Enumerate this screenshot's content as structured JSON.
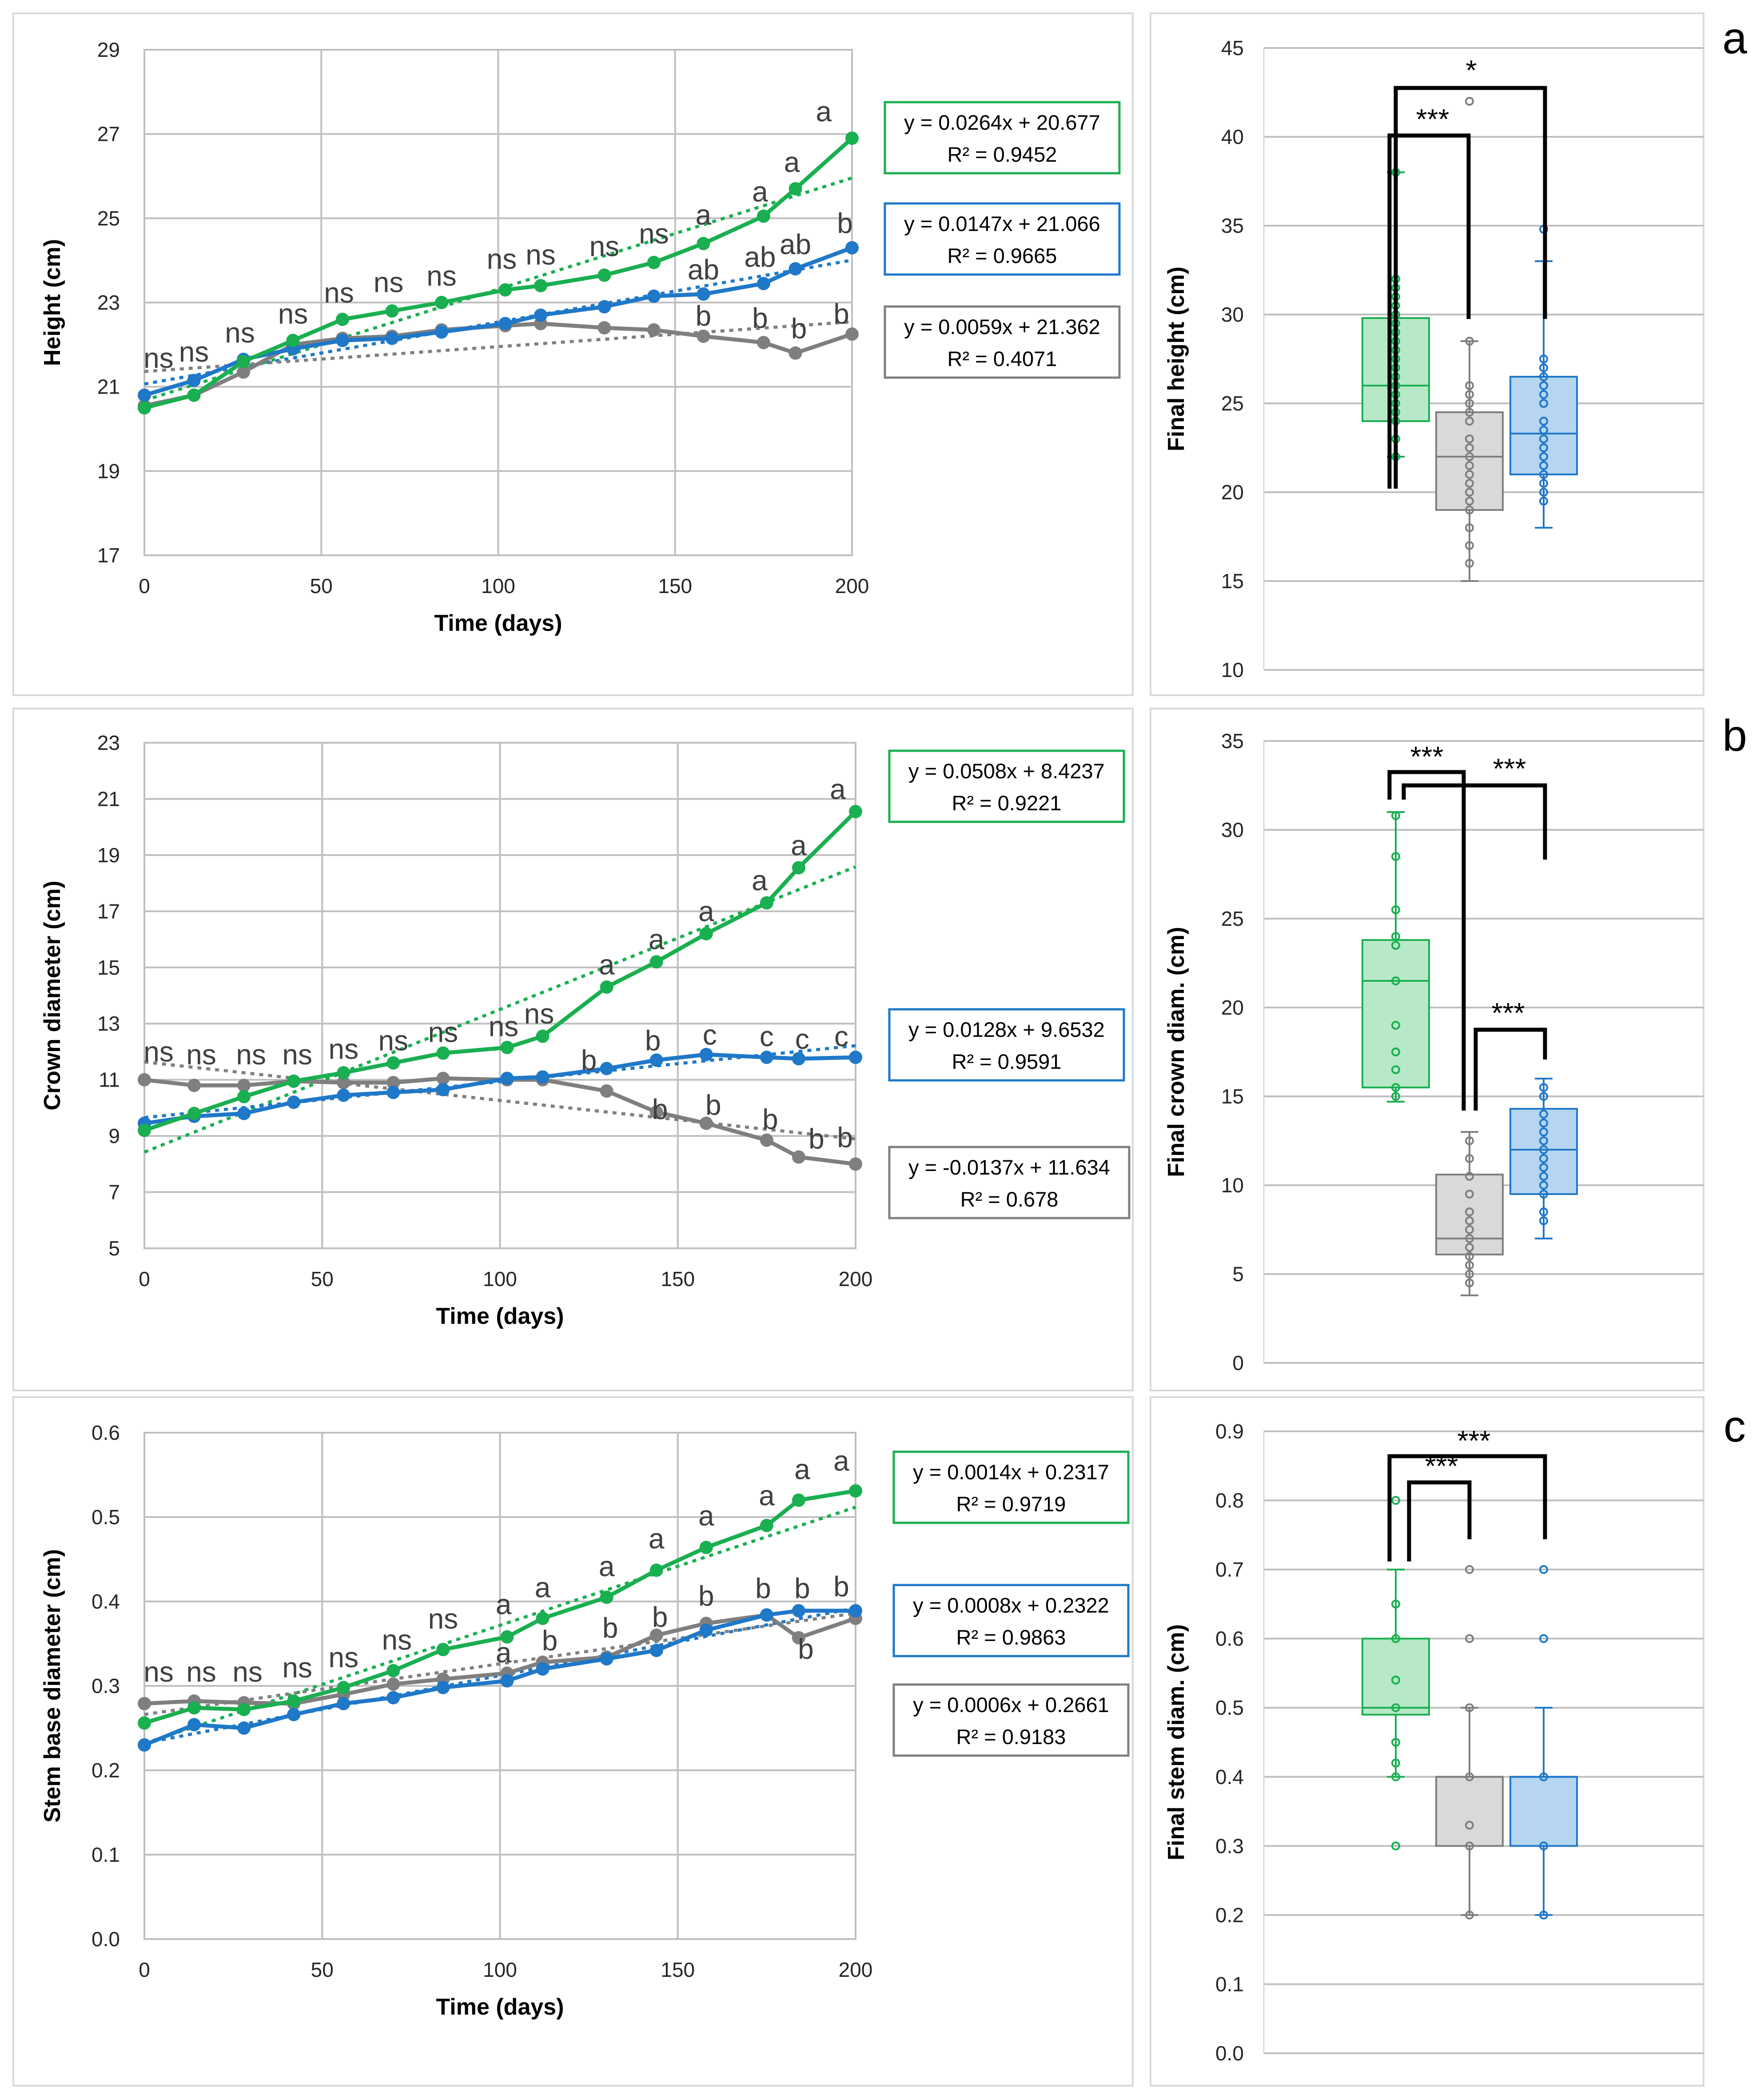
{
  "colors": {
    "green": "#1aaf50",
    "blue": "#1f78c8",
    "gray": "#7f7f7f",
    "green_fill": "#b7e9c8",
    "blue_fill": "#b5d5f0",
    "gray_fill": "#d9d9d9"
  },
  "chart_data": [
    {
      "type": "line",
      "panel": "a",
      "title": "",
      "xlabel": "Time (days)",
      "ylabel": "Height (cm)",
      "xlim": [
        0,
        200
      ],
      "ylim": [
        17,
        29
      ],
      "x_ticks": [
        "0",
        "50",
        "100",
        "150",
        "200"
      ],
      "y_ticks": [
        "17",
        "19",
        "21",
        "23",
        "25",
        "27",
        "29"
      ],
      "x": [
        0,
        14,
        28,
        42,
        56,
        70,
        84,
        102,
        112,
        130,
        144,
        158,
        175,
        184,
        200
      ],
      "series": [
        {
          "name": "green",
          "values": [
            20.5,
            20.8,
            21.6,
            22.1,
            22.6,
            22.8,
            23.0,
            23.3,
            23.4,
            23.65,
            23.95,
            24.4,
            25.05,
            25.7,
            26.9
          ],
          "trend": {
            "slope": 0.0264,
            "intercept": 20.677
          },
          "equation": "y = 0.0264x + 20.677",
          "r2": "R² = 0.9452"
        },
        {
          "name": "blue",
          "values": [
            20.8,
            21.15,
            21.65,
            21.9,
            22.1,
            22.15,
            22.3,
            22.5,
            22.7,
            22.9,
            23.15,
            23.2,
            23.45,
            23.8,
            24.3
          ],
          "trend": {
            "slope": 0.0147,
            "intercept": 21.066
          },
          "equation": "y = 0.0147x + 21.066",
          "r2": "R² = 0.9665"
        },
        {
          "name": "gray",
          "values": [
            20.55,
            20.8,
            21.35,
            22.0,
            22.15,
            22.2,
            22.35,
            22.45,
            22.5,
            22.4,
            22.35,
            22.2,
            22.05,
            21.8,
            22.25
          ],
          "trend": {
            "slope": 0.0059,
            "intercept": 21.362
          },
          "equation": "y = 0.0059x + 21.362",
          "r2": "R² = 0.4071"
        }
      ],
      "annotations": [
        {
          "x": 4,
          "y": 21.45,
          "text": "ns"
        },
        {
          "x": 14,
          "y": 21.6,
          "text": "ns"
        },
        {
          "x": 27,
          "y": 22.05,
          "text": "ns"
        },
        {
          "x": 42,
          "y": 22.5,
          "text": "ns"
        },
        {
          "x": 55,
          "y": 23.0,
          "text": "ns"
        },
        {
          "x": 69,
          "y": 23.25,
          "text": "ns"
        },
        {
          "x": 84,
          "y": 23.4,
          "text": "ns"
        },
        {
          "x": 101,
          "y": 23.8,
          "text": "ns"
        },
        {
          "x": 112,
          "y": 23.9,
          "text": "ns"
        },
        {
          "x": 130,
          "y": 24.1,
          "text": "ns"
        },
        {
          "x": 144,
          "y": 24.4,
          "text": "ns"
        },
        {
          "x": 158,
          "y": 24.85,
          "text": "a"
        },
        {
          "x": 174,
          "y": 25.4,
          "text": "a"
        },
        {
          "x": 183,
          "y": 26.1,
          "text": "a"
        },
        {
          "x": 192,
          "y": 27.3,
          "text": "a"
        },
        {
          "x": 158,
          "y": 23.55,
          "text": "ab"
        },
        {
          "x": 174,
          "y": 23.85,
          "text": "ab"
        },
        {
          "x": 184,
          "y": 24.15,
          "text": "ab"
        },
        {
          "x": 198,
          "y": 24.65,
          "text": "b"
        },
        {
          "x": 158,
          "y": 22.45,
          "text": "b"
        },
        {
          "x": 174,
          "y": 22.4,
          "text": "b"
        },
        {
          "x": 185,
          "y": 22.15,
          "text": "b"
        },
        {
          "x": 197,
          "y": 22.5,
          "text": "b"
        }
      ]
    },
    {
      "type": "line",
      "panel": "b",
      "title": "",
      "xlabel": "Time (days)",
      "ylabel": "Crown diameter (cm)",
      "xlim": [
        0,
        200
      ],
      "ylim": [
        5,
        23
      ],
      "x_ticks": [
        "0",
        "50",
        "100",
        "150",
        "200"
      ],
      "y_ticks": [
        "5",
        "7",
        "9",
        "11",
        "13",
        "15",
        "17",
        "19",
        "21",
        "23"
      ],
      "x": [
        0,
        14,
        28,
        42,
        56,
        70,
        84,
        102,
        112,
        130,
        144,
        158,
        175,
        184,
        200
      ],
      "series": [
        {
          "name": "green",
          "values": [
            9.2,
            9.8,
            10.4,
            10.95,
            11.25,
            11.6,
            11.95,
            12.15,
            12.55,
            14.3,
            15.2,
            16.2,
            17.3,
            18.55,
            20.55
          ],
          "trend": {
            "slope": 0.0508,
            "intercept": 8.4237
          },
          "equation": "y = 0.0508x + 8.4237",
          "r2": "R² = 0.9221"
        },
        {
          "name": "blue",
          "values": [
            9.45,
            9.7,
            9.8,
            10.2,
            10.45,
            10.55,
            10.65,
            11.05,
            11.1,
            11.4,
            11.7,
            11.9,
            11.8,
            11.75,
            11.8
          ],
          "trend": {
            "slope": 0.0128,
            "intercept": 9.6532
          },
          "equation": "y = 0.0128x + 9.6532",
          "r2": "R² = 0.9591"
        },
        {
          "name": "gray",
          "values": [
            11.0,
            10.8,
            10.8,
            10.95,
            10.9,
            10.9,
            11.05,
            11.0,
            11.0,
            10.6,
            9.85,
            9.45,
            8.85,
            8.25,
            8.0
          ],
          "trend": {
            "slope": -0.0137,
            "intercept": 11.634
          },
          "equation": "y = -0.0137x + 11.634",
          "r2": "R² = 0.678"
        }
      ],
      "annotations": [
        {
          "x": 4,
          "y": 11.65,
          "text": "ns"
        },
        {
          "x": 16,
          "y": 11.55,
          "text": "ns"
        },
        {
          "x": 30,
          "y": 11.55,
          "text": "ns"
        },
        {
          "x": 43,
          "y": 11.55,
          "text": "ns"
        },
        {
          "x": 56,
          "y": 11.75,
          "text": "ns"
        },
        {
          "x": 70,
          "y": 12.05,
          "text": "ns"
        },
        {
          "x": 84,
          "y": 12.35,
          "text": "ns"
        },
        {
          "x": 101,
          "y": 12.55,
          "text": "ns"
        },
        {
          "x": 111,
          "y": 13.0,
          "text": "ns"
        },
        {
          "x": 130,
          "y": 14.75,
          "text": "a"
        },
        {
          "x": 144,
          "y": 15.65,
          "text": "a"
        },
        {
          "x": 158,
          "y": 16.65,
          "text": "a"
        },
        {
          "x": 173,
          "y": 17.75,
          "text": "a"
        },
        {
          "x": 184,
          "y": 19.0,
          "text": "a"
        },
        {
          "x": 195,
          "y": 21.0,
          "text": "a"
        },
        {
          "x": 125,
          "y": 11.35,
          "text": "b"
        },
        {
          "x": 143,
          "y": 12.05,
          "text": "b"
        },
        {
          "x": 159,
          "y": 12.25,
          "text": "c"
        },
        {
          "x": 175,
          "y": 12.2,
          "text": "c"
        },
        {
          "x": 185,
          "y": 12.1,
          "text": "c"
        },
        {
          "x": 196,
          "y": 12.2,
          "text": "c"
        },
        {
          "x": 145,
          "y": 9.6,
          "text": "b"
        },
        {
          "x": 160,
          "y": 9.75,
          "text": "b"
        },
        {
          "x": 176,
          "y": 9.25,
          "text": "b"
        },
        {
          "x": 189,
          "y": 8.55,
          "text": "b"
        },
        {
          "x": 197,
          "y": 8.6,
          "text": "b"
        }
      ]
    },
    {
      "type": "line",
      "panel": "c",
      "title": "",
      "xlabel": "Time (days)",
      "ylabel": "Stem base diameter (cm)",
      "xlim": [
        0,
        200
      ],
      "ylim": [
        0.0,
        0.6
      ],
      "x_ticks": [
        "0",
        "50",
        "100",
        "150",
        "200"
      ],
      "y_ticks": [
        "0.0",
        "0.1",
        "0.2",
        "0.3",
        "0.4",
        "0.5",
        "0.6"
      ],
      "x": [
        0,
        14,
        28,
        42,
        56,
        70,
        84,
        102,
        112,
        130,
        144,
        158,
        175,
        184,
        200
      ],
      "series": [
        {
          "name": "green",
          "values": [
            0.256,
            0.274,
            0.272,
            0.282,
            0.298,
            0.318,
            0.343,
            0.358,
            0.38,
            0.405,
            0.437,
            0.464,
            0.49,
            0.52,
            0.531
          ],
          "trend": {
            "slope": 0.0014,
            "intercept": 0.2317
          },
          "equation": "y = 0.0014x + 0.2317",
          "r2": "R² = 0.9719"
        },
        {
          "name": "blue",
          "values": [
            0.23,
            0.254,
            0.25,
            0.266,
            0.279,
            0.286,
            0.298,
            0.306,
            0.32,
            0.332,
            0.342,
            0.366,
            0.384,
            0.389,
            0.389
          ],
          "trend": {
            "slope": 0.0008,
            "intercept": 0.2322
          },
          "equation": "y = 0.0008x + 0.2322",
          "r2": "R² = 0.9863"
        },
        {
          "name": "gray",
          "values": [
            0.279,
            0.282,
            0.28,
            0.279,
            0.29,
            0.302,
            0.308,
            0.315,
            0.328,
            0.334,
            0.36,
            0.374,
            0.384,
            0.357,
            0.38
          ],
          "trend": {
            "slope": 0.0006,
            "intercept": 0.2661
          },
          "equation": "y = 0.0006x + 0.2661",
          "r2": "R² = 0.9183"
        }
      ],
      "annotations": [
        {
          "x": 4,
          "y": 0.305,
          "text": "ns"
        },
        {
          "x": 16,
          "y": 0.305,
          "text": "ns"
        },
        {
          "x": 29,
          "y": 0.305,
          "text": "ns"
        },
        {
          "x": 43,
          "y": 0.31,
          "text": "ns"
        },
        {
          "x": 56,
          "y": 0.322,
          "text": "ns"
        },
        {
          "x": 71,
          "y": 0.343,
          "text": "ns"
        },
        {
          "x": 84,
          "y": 0.368,
          "text": "ns"
        },
        {
          "x": 101,
          "y": 0.385,
          "text": "a"
        },
        {
          "x": 112,
          "y": 0.405,
          "text": "a"
        },
        {
          "x": 130,
          "y": 0.43,
          "text": "a"
        },
        {
          "x": 144,
          "y": 0.463,
          "text": "a"
        },
        {
          "x": 158,
          "y": 0.49,
          "text": "a"
        },
        {
          "x": 175,
          "y": 0.514,
          "text": "a"
        },
        {
          "x": 185,
          "y": 0.545,
          "text": "a"
        },
        {
          "x": 196,
          "y": 0.555,
          "text": "a"
        },
        {
          "x": 101,
          "y": 0.328,
          "text": "a"
        },
        {
          "x": 114,
          "y": 0.342,
          "text": "b"
        },
        {
          "x": 131,
          "y": 0.357,
          "text": "b"
        },
        {
          "x": 145,
          "y": 0.37,
          "text": "b"
        },
        {
          "x": 158,
          "y": 0.395,
          "text": "b"
        },
        {
          "x": 174,
          "y": 0.404,
          "text": "b"
        },
        {
          "x": 185,
          "y": 0.404,
          "text": "b"
        },
        {
          "x": 196,
          "y": 0.406,
          "text": "b"
        },
        {
          "x": 186,
          "y": 0.332,
          "text": "b"
        }
      ]
    },
    {
      "type": "box",
      "panel": "a",
      "ylabel": "Final height (cm)",
      "ylim": [
        10,
        45
      ],
      "y_ticks": [
        "10",
        "15",
        "20",
        "25",
        "30",
        "35",
        "40",
        "45"
      ],
      "groups": [
        {
          "name": "green",
          "whisker_low": 22,
          "q1": 24,
          "median": 26,
          "q3": 29.8,
          "whisker_high": 38,
          "points": [
            22,
            23,
            24,
            24.5,
            25,
            25.5,
            26,
            26,
            26.5,
            27,
            27.5,
            28,
            28.5,
            29,
            29.5,
            30,
            30.5,
            31,
            31.5,
            32,
            38
          ],
          "outliers": []
        },
        {
          "name": "gray",
          "whisker_low": 15,
          "q1": 19,
          "median": 22,
          "q3": 24.5,
          "whisker_high": 28.5,
          "points": [
            16,
            17,
            18,
            19,
            19.5,
            20,
            20.5,
            21,
            21.5,
            22,
            22.5,
            23,
            24,
            24.5,
            25,
            25.5,
            26,
            28.5
          ],
          "outliers": [
            42
          ]
        },
        {
          "name": "blue",
          "whisker_low": 18,
          "q1": 21,
          "median": 23.3,
          "q3": 26.5,
          "whisker_high": 33,
          "points": [
            19.5,
            20,
            20.5,
            21,
            21.5,
            22,
            22.5,
            23,
            23.5,
            24,
            25,
            25.5,
            26,
            26.5,
            27,
            27.5
          ],
          "outliers": [
            34.8
          ]
        }
      ],
      "significance": [
        {
          "pair": [
            "green",
            "gray"
          ],
          "label": "***"
        },
        {
          "pair": [
            "green",
            "blue"
          ],
          "label": "*"
        }
      ],
      "panel_label": "a"
    },
    {
      "type": "box",
      "panel": "b",
      "ylabel": "Final crown diam. (cm)",
      "ylim": [
        0,
        35
      ],
      "y_ticks": [
        "0",
        "5",
        "10",
        "15",
        "20",
        "25",
        "30",
        "35"
      ],
      "groups": [
        {
          "name": "green",
          "whisker_low": 14.7,
          "q1": 15.5,
          "median": 21.5,
          "q3": 23.8,
          "whisker_high": 31,
          "points": [
            15,
            15.5,
            16.5,
            17.5,
            19,
            21.5,
            23.5,
            24,
            25.5,
            28.5,
            30.8
          ],
          "outliers": []
        },
        {
          "name": "gray",
          "whisker_low": 3.8,
          "q1": 6.1,
          "median": 7,
          "q3": 10.6,
          "whisker_high": 13,
          "points": [
            4.5,
            5,
            5.5,
            6,
            6.5,
            7,
            7.5,
            8,
            8.5,
            9.5,
            10.5,
            11.5,
            12.5
          ],
          "outliers": []
        },
        {
          "name": "blue",
          "whisker_low": 7,
          "q1": 9.5,
          "median": 12,
          "q3": 14.3,
          "whisker_high": 16,
          "points": [
            8,
            8.5,
            9.5,
            10,
            10.5,
            11,
            11.5,
            12,
            12.5,
            13,
            13.5,
            14,
            15,
            15.5
          ],
          "outliers": []
        }
      ],
      "significance": [
        {
          "pair": [
            "green",
            "gray"
          ],
          "label": "***"
        },
        {
          "pair": [
            "green",
            "blue"
          ],
          "label": "***"
        },
        {
          "pair": [
            "gray",
            "blue"
          ],
          "label": "***"
        }
      ],
      "panel_label": "b"
    },
    {
      "type": "box",
      "panel": "c",
      "ylabel": "Final stem diam. (cm)",
      "ylim": [
        0.0,
        0.9
      ],
      "y_ticks": [
        "0.0",
        "0.1",
        "0.2",
        "0.3",
        "0.4",
        "0.5",
        "0.6",
        "0.7",
        "0.8",
        "0.9"
      ],
      "groups": [
        {
          "name": "green",
          "whisker_low": 0.4,
          "q1": 0.49,
          "median": 0.5,
          "q3": 0.6,
          "whisker_high": 0.7,
          "points": [
            0.4,
            0.42,
            0.45,
            0.5,
            0.54,
            0.6,
            0.65
          ],
          "outliers": [
            0.3,
            0.8
          ]
        },
        {
          "name": "gray",
          "whisker_low": 0.2,
          "q1": 0.3,
          "median": 0.4,
          "q3": 0.4,
          "whisker_high": 0.5,
          "points": [
            0.2,
            0.3,
            0.33,
            0.4,
            0.5
          ],
          "outliers": [
            0.6,
            0.7
          ]
        },
        {
          "name": "blue",
          "whisker_low": 0.2,
          "q1": 0.3,
          "median": 0.4,
          "q3": 0.4,
          "whisker_high": 0.5,
          "points": [
            0.2,
            0.3,
            0.4
          ],
          "outliers": [
            0.6,
            0.7
          ]
        }
      ],
      "significance": [
        {
          "pair": [
            "green",
            "gray"
          ],
          "label": "***"
        },
        {
          "pair": [
            "green",
            "blue"
          ],
          "label": "***"
        }
      ],
      "panel_label": "c"
    }
  ]
}
